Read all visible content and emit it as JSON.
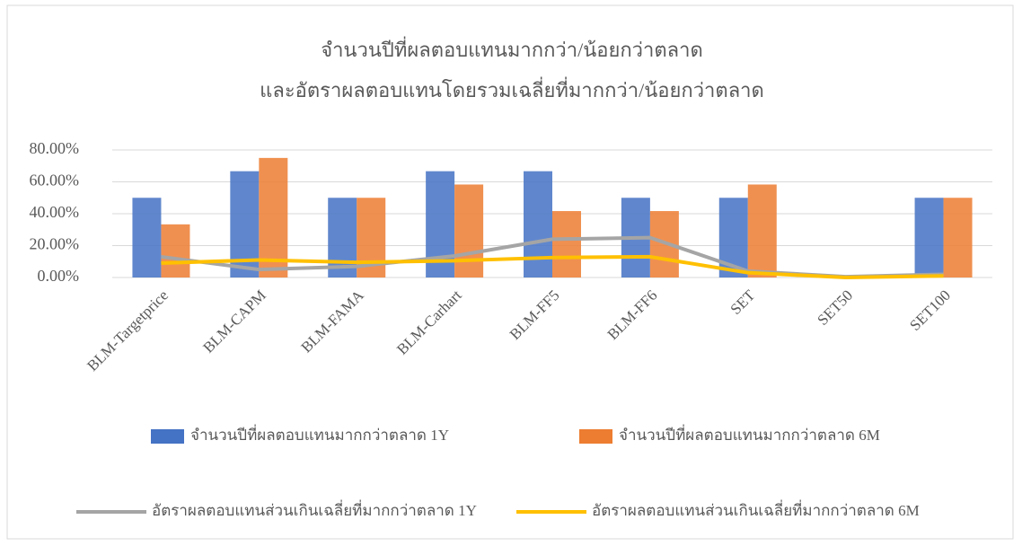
{
  "chart_data": {
    "type": "bar",
    "title": "จำนวนปีที่ผลตอบแทนมากกว่า/น้อยกว่าตลาด",
    "subtitle": "และอัตราผลตอบแทนโดยรวมเฉลี่ยที่มากกว่า/น้อยกว่าตลาด",
    "categories": [
      "BLM-Targetprice",
      "BLM-CAPM",
      "BLM-FAMA",
      "BLM-Carhart",
      "BLM-FF5",
      "BLM-FF6",
      "SET",
      "SET50",
      "SET100"
    ],
    "series": [
      {
        "name": "จำนวนปีที่ผลตอบแทนมากกว่าตลาด 1Y",
        "type": "bar",
        "color": "#4472c4",
        "values": [
          50,
          66.67,
          50,
          66.67,
          66.67,
          50,
          50,
          0,
          50
        ]
      },
      {
        "name": "จำนวนปีที่ผลตอบแทนมากกว่าตลาด 6M",
        "type": "bar",
        "color": "#ed7d31",
        "values": [
          33.33,
          75,
          50,
          58.33,
          41.67,
          41.67,
          58.33,
          0,
          50
        ]
      },
      {
        "name": "อัตราผลตอบแทนส่วนเกินเฉลี่ยที่มากกว่าตลาด 1Y",
        "type": "line",
        "color": "#a5a5a5",
        "values": [
          13,
          5,
          7,
          13.5,
          24,
          25,
          4,
          0.5,
          2
        ]
      },
      {
        "name": "อัตราผลตอบแทนส่วนเกินเฉลี่ยที่มากกว่าตลาด 6M",
        "type": "line",
        "color": "#ffc000",
        "values": [
          9,
          11,
          9.5,
          10.5,
          12.5,
          13,
          3,
          0,
          1
        ]
      }
    ],
    "ylim": [
      0,
      80
    ],
    "yticks": [
      {
        "value": 0,
        "label": "0.00%"
      },
      {
        "value": 20,
        "label": "20.00%"
      },
      {
        "value": 40,
        "label": "40.00%"
      },
      {
        "value": 60,
        "label": "60.00%"
      },
      {
        "value": 80,
        "label": "80.00%"
      }
    ],
    "grid": true
  }
}
